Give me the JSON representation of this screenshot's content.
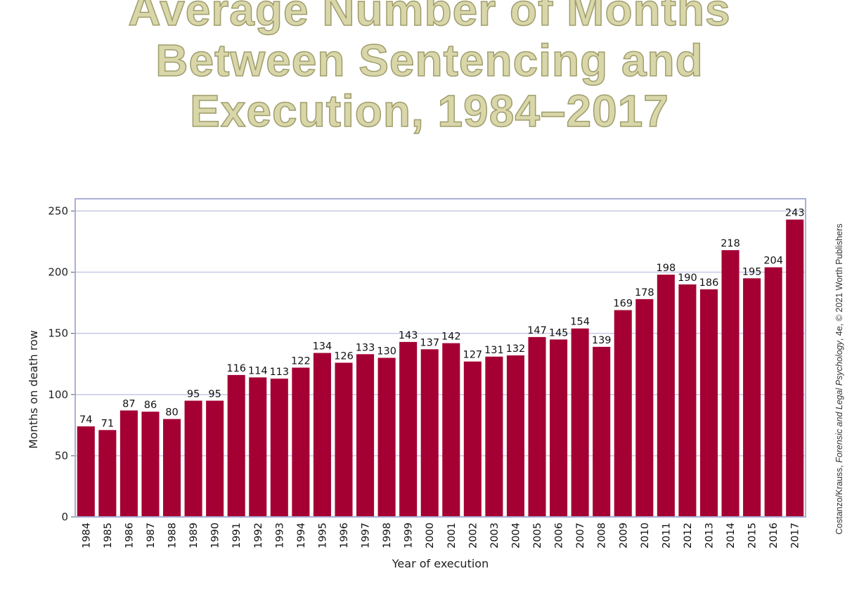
{
  "title_lines": [
    "Average Number of Months",
    "Between Sentencing and",
    "Execution, 1984–2017"
  ],
  "credit": {
    "prefix": "Costanzo/Krauss, ",
    "book": "Forensic and Legal Psychology",
    "suffix": ", 4e, © 2021 Worth Publishers"
  },
  "colors": {
    "bar": "#a50034",
    "frame": "#a9aed6",
    "grid": "#c5c9e6",
    "title": "#d9d7a9"
  },
  "chart_data": {
    "type": "bar",
    "xlabel": "Year of execution",
    "ylabel": "Months on death row",
    "ylim": [
      0,
      260
    ],
    "yticks": [
      0,
      50,
      100,
      150,
      200,
      250
    ],
    "grid": true,
    "categories": [
      "1984",
      "1985",
      "1986",
      "1987",
      "1988",
      "1989",
      "1990",
      "1991",
      "1992",
      "1993",
      "1994",
      "1995",
      "1996",
      "1997",
      "1998",
      "1999",
      "2000",
      "2001",
      "2002",
      "2003",
      "2004",
      "2005",
      "2006",
      "2007",
      "2008",
      "2009",
      "2010",
      "2011",
      "2012",
      "2013",
      "2014",
      "2015",
      "2016",
      "2017"
    ],
    "values": [
      74,
      71,
      87,
      86,
      80,
      95,
      95,
      116,
      114,
      113,
      122,
      134,
      126,
      133,
      130,
      143,
      137,
      142,
      127,
      131,
      132,
      147,
      145,
      154,
      139,
      169,
      178,
      198,
      190,
      186,
      218,
      195,
      204,
      243
    ]
  }
}
